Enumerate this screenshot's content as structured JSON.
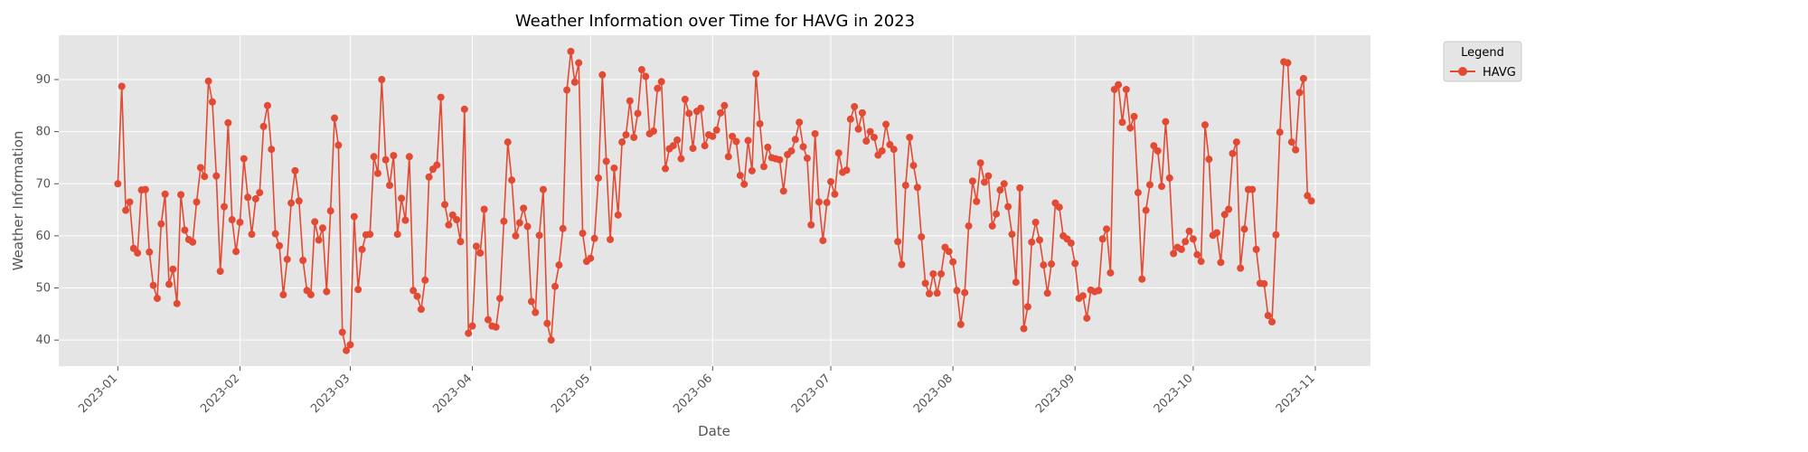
{
  "chart_data": {
    "type": "line",
    "title": "Weather Information over Time for HAVG in 2023",
    "xlabel": "Date",
    "ylabel": "Weather Information",
    "xlim": [
      "2022-12-17",
      "2023-11-15"
    ],
    "ylim": [
      35,
      98.5
    ],
    "x_ticks": [
      "2023-01",
      "2023-02",
      "2023-03",
      "2023-04",
      "2023-05",
      "2023-06",
      "2023-07",
      "2023-08",
      "2023-09",
      "2023-10",
      "2023-11"
    ],
    "y_ticks": [
      40,
      50,
      60,
      70,
      80,
      90
    ],
    "grid": true,
    "legend": {
      "title": "Legend",
      "placement": "outside-top-right"
    },
    "colors": {
      "series": "#e24a33",
      "plot_bg": "#e5e5e5",
      "grid": "#ffffff"
    },
    "start_date": "2023-01-01",
    "x_step_days": 1,
    "series": [
      {
        "name": "HAVG",
        "values": [
          70.0,
          88.7,
          64.9,
          66.5,
          57.6,
          56.7,
          68.8,
          68.9,
          56.9,
          50.5,
          48.0,
          62.3,
          68.0,
          50.7,
          53.6,
          47.0,
          67.9,
          61.1,
          59.3,
          58.8,
          66.5,
          73.1,
          71.4,
          89.7,
          85.7,
          71.5,
          53.2,
          65.6,
          81.7,
          63.1,
          57.0,
          62.6,
          74.8,
          67.4,
          60.3,
          67.1,
          68.3,
          81.0,
          85.0,
          76.6,
          60.4,
          58.1,
          48.7,
          55.5,
          66.3,
          72.5,
          66.7,
          55.3,
          49.5,
          48.7,
          62.7,
          59.2,
          61.5,
          49.3,
          64.8,
          82.6,
          77.4,
          41.5,
          38.0,
          39.1,
          63.7,
          49.7,
          57.4,
          60.2,
          60.3,
          75.2,
          72.0,
          90.0,
          74.6,
          69.7,
          75.4,
          60.3,
          67.2,
          63.0,
          75.2,
          49.5,
          48.4,
          45.9,
          51.5,
          71.3,
          72.8,
          73.6,
          86.6,
          66.0,
          62.1,
          64.0,
          63.1,
          58.9,
          84.3,
          41.3,
          42.7,
          58.0,
          56.7,
          65.1,
          43.9,
          42.7,
          42.5,
          48.0,
          62.8,
          78.0,
          70.7,
          60.0,
          62.5,
          65.3,
          61.8,
          47.4,
          45.3,
          60.1,
          68.9,
          43.2,
          40.0,
          50.3,
          54.4,
          61.4,
          88.0,
          95.4,
          89.5,
          93.2,
          60.5,
          55.1,
          55.7,
          59.5,
          71.1,
          90.9,
          74.3,
          59.3,
          73.0,
          64.0,
          78.0,
          79.4,
          85.9,
          78.9,
          83.5,
          91.9,
          90.6,
          79.6,
          80.1,
          88.3,
          89.6,
          72.9,
          76.7,
          77.3,
          78.4,
          74.8,
          86.2,
          83.5,
          76.8,
          83.9,
          84.5,
          77.3,
          79.4,
          79.1,
          80.3,
          83.6,
          85.0,
          75.2,
          79.1,
          78.1,
          71.6,
          69.9,
          78.3,
          72.5,
          91.1,
          81.5,
          73.3,
          77.0,
          75.0,
          74.8,
          74.6,
          68.6,
          75.6,
          76.3,
          78.5,
          81.8,
          77.1,
          74.9,
          62.1,
          79.6,
          66.5,
          59.1,
          66.4,
          70.4,
          68.0,
          75.9,
          72.2,
          72.6,
          82.4,
          84.8,
          80.5,
          83.6,
          78.2,
          80.0,
          78.9,
          75.5,
          76.3,
          81.4,
          77.5,
          76.6,
          58.9,
          54.5,
          69.7,
          78.9,
          73.5,
          69.3,
          59.8,
          50.9,
          48.9,
          52.7,
          49.0,
          52.7,
          57.8,
          57.0,
          55.0,
          49.5,
          43.0,
          49.1,
          61.9,
          70.5,
          66.6,
          74.0,
          70.3,
          71.5,
          61.9,
          64.2,
          68.8,
          70.0,
          65.6,
          60.3,
          51.1,
          69.2,
          42.2,
          46.4,
          58.8,
          62.6,
          59.2,
          54.4,
          49.0,
          54.6,
          66.3,
          65.5,
          60.0,
          59.4,
          58.6,
          54.7,
          48.0,
          48.5,
          44.2,
          49.6,
          49.3,
          49.5,
          59.4,
          61.3,
          52.9,
          88.1,
          89.0,
          81.8,
          88.1,
          80.7,
          82.9,
          68.3,
          51.7,
          64.9,
          69.8,
          77.3,
          76.3,
          69.5,
          81.9,
          71.1,
          56.6,
          57.8,
          57.4,
          58.9,
          60.9,
          59.4,
          56.4,
          55.1,
          81.3,
          74.7,
          60.1,
          60.6,
          54.9,
          64.1,
          65.1,
          75.8,
          78.0,
          53.8,
          61.3,
          68.9,
          68.9,
          57.4,
          50.9,
          50.8,
          44.7,
          43.5,
          60.2,
          79.9,
          93.4,
          93.2,
          78.0,
          76.5,
          87.5,
          90.2,
          67.7,
          66.7
        ]
      }
    ]
  }
}
